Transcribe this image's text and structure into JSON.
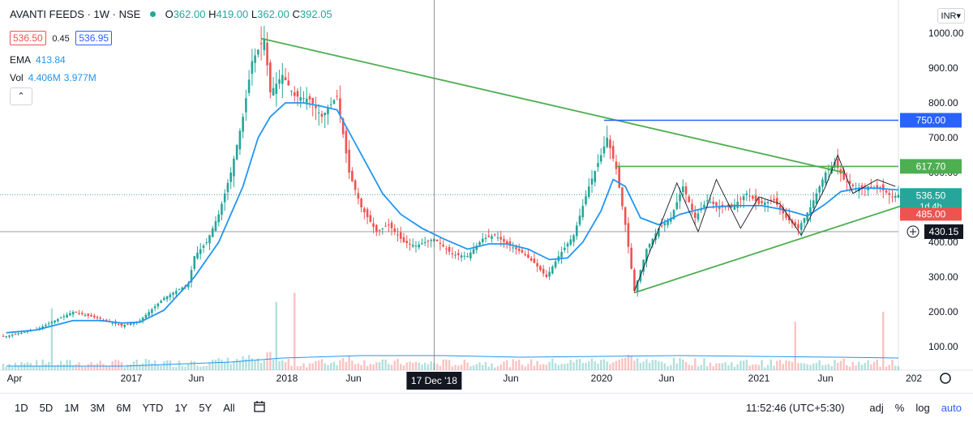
{
  "header": {
    "symbol": "AVANTI FEEDS · 1W · NSE",
    "ohlc": [
      {
        "key": "O",
        "value": "362.00"
      },
      {
        "key": "H",
        "value": "419.00"
      },
      {
        "key": "L",
        "value": "362.00"
      },
      {
        "key": "C",
        "value": "392.05"
      }
    ],
    "bid": "536.50",
    "spread": "0.45",
    "ask": "536.95",
    "ema_label": "EMA",
    "ema_value": "413.84",
    "vol_label": "Vol",
    "vol_value1": "4.406M",
    "vol_value2": "3.977M",
    "collapse_glyph": "⌃",
    "currency": "INR▾"
  },
  "colors": {
    "up": "#26a69a",
    "down": "#ef5350",
    "ema": "#2196f3",
    "trend": "#4caf50",
    "hline_blue": "#2962ff"
  },
  "chart_data": {
    "type": "candlestick",
    "timeframe": "1W",
    "y_axis_ticks": [
      100,
      200,
      300,
      400,
      500,
      600,
      700,
      800,
      900,
      1000
    ],
    "y_axis_tick_labels": [
      "100.00",
      "200.00",
      "300.00",
      "400.00",
      "500.00",
      "600.00",
      "700.00",
      "800.00",
      "900.00",
      "1000.00"
    ],
    "x_axis_labels": [
      "Apr",
      "2017",
      "Jun",
      "2018",
      "Jun",
      "Jun",
      "2020",
      "Jun",
      "2021",
      "Jun",
      "202"
    ],
    "cursor_date_label": "17 Dec '18",
    "x_range": [
      "2016-03-28",
      "2021-11-22"
    ],
    "ylim": [
      20,
      1060
    ],
    "price_path": [
      [
        "2016-04-04",
        130
      ],
      [
        "2016-06-13",
        150
      ],
      [
        "2016-09-05",
        200
      ],
      [
        "2016-11-07",
        180
      ],
      [
        "2016-12-26",
        160
      ],
      [
        "2017-02-06",
        175
      ],
      [
        "2017-04-03",
        240
      ],
      [
        "2017-05-29",
        280
      ],
      [
        "2017-06-12",
        360
      ],
      [
        "2017-07-10",
        400
      ],
      [
        "2017-08-07",
        480
      ],
      [
        "2017-09-04",
        600
      ],
      [
        "2017-10-02",
        760
      ],
      [
        "2017-10-23",
        920
      ],
      [
        "2017-11-20",
        985
      ],
      [
        "2017-12-04",
        830
      ],
      [
        "2018-01-01",
        880
      ],
      [
        "2018-01-29",
        820
      ],
      [
        "2018-03-05",
        810
      ],
      [
        "2018-04-02",
        760
      ],
      [
        "2018-05-07",
        820
      ],
      [
        "2018-06-04",
        600
      ],
      [
        "2018-07-02",
        500
      ],
      [
        "2018-08-06",
        430
      ],
      [
        "2018-09-03",
        450
      ],
      [
        "2018-10-08",
        400
      ],
      [
        "2018-11-05",
        390
      ],
      [
        "2018-12-17",
        410
      ],
      [
        "2019-01-28",
        365
      ],
      [
        "2019-03-04",
        360
      ],
      [
        "2019-04-08",
        410
      ],
      [
        "2019-05-06",
        420
      ],
      [
        "2019-06-03",
        395
      ],
      [
        "2019-07-08",
        370
      ],
      [
        "2019-08-05",
        340
      ],
      [
        "2019-09-02",
        300
      ],
      [
        "2019-09-30",
        360
      ],
      [
        "2019-11-04",
        420
      ],
      [
        "2019-12-09",
        560
      ],
      [
        "2020-01-06",
        650
      ],
      [
        "2020-01-20",
        700
      ],
      [
        "2020-02-10",
        610
      ],
      [
        "2020-03-02",
        450
      ],
      [
        "2020-03-23",
        260
      ],
      [
        "2020-04-20",
        380
      ],
      [
        "2020-05-18",
        440
      ],
      [
        "2020-06-15",
        470
      ],
      [
        "2020-07-13",
        560
      ],
      [
        "2020-08-10",
        470
      ],
      [
        "2020-09-07",
        520
      ],
      [
        "2020-10-05",
        500
      ],
      [
        "2020-11-02",
        500
      ],
      [
        "2020-12-07",
        540
      ],
      [
        "2021-01-04",
        510
      ],
      [
        "2021-02-08",
        520
      ],
      [
        "2021-03-08",
        470
      ],
      [
        "2021-04-05",
        440
      ],
      [
        "2021-05-03",
        500
      ],
      [
        "2021-06-07",
        600
      ],
      [
        "2021-06-28",
        630
      ],
      [
        "2021-07-19",
        580
      ],
      [
        "2021-08-16",
        555
      ],
      [
        "2021-09-13",
        560
      ],
      [
        "2021-10-11",
        555
      ],
      [
        "2021-11-08",
        530
      ],
      [
        "2021-11-22",
        536
      ]
    ],
    "ema_path": [
      [
        "2016-04-04",
        140
      ],
      [
        "2016-06-13",
        148
      ],
      [
        "2016-09-05",
        175
      ],
      [
        "2016-11-07",
        175
      ],
      [
        "2016-12-26",
        168
      ],
      [
        "2017-02-06",
        170
      ],
      [
        "2017-04-03",
        205
      ],
      [
        "2017-06-12",
        300
      ],
      [
        "2017-08-07",
        400
      ],
      [
        "2017-09-04",
        480
      ],
      [
        "2017-10-02",
        560
      ],
      [
        "2017-11-06",
        700
      ],
      [
        "2017-12-04",
        760
      ],
      [
        "2018-01-08",
        800
      ],
      [
        "2018-02-19",
        800
      ],
      [
        "2018-04-02",
        790
      ],
      [
        "2018-05-07",
        780
      ],
      [
        "2018-06-11",
        700
      ],
      [
        "2018-07-16",
        620
      ],
      [
        "2018-08-20",
        540
      ],
      [
        "2018-10-01",
        480
      ],
      [
        "2018-11-19",
        440
      ],
      [
        "2019-01-07",
        410
      ],
      [
        "2019-03-04",
        380
      ],
      [
        "2019-04-22",
        395
      ],
      [
        "2019-06-03",
        395
      ],
      [
        "2019-07-22",
        380
      ],
      [
        "2019-09-09",
        350
      ],
      [
        "2019-10-21",
        355
      ],
      [
        "2019-11-25",
        400
      ],
      [
        "2020-01-06",
        490
      ],
      [
        "2020-02-03",
        580
      ],
      [
        "2020-03-02",
        560
      ],
      [
        "2020-04-06",
        470
      ],
      [
        "2020-05-18",
        450
      ],
      [
        "2020-07-06",
        480
      ],
      [
        "2020-09-07",
        500
      ],
      [
        "2020-11-09",
        505
      ],
      [
        "2021-01-11",
        505
      ],
      [
        "2021-03-15",
        490
      ],
      [
        "2021-04-26",
        475
      ],
      [
        "2021-06-07",
        510
      ],
      [
        "2021-07-12",
        545
      ],
      [
        "2021-08-23",
        555
      ],
      [
        "2021-10-04",
        555
      ],
      [
        "2021-11-22",
        550
      ]
    ],
    "volume_path": [
      [
        "2016-04-04",
        5
      ],
      [
        "2017-01-02",
        5
      ],
      [
        "2017-09-04",
        10
      ],
      [
        "2018-01-01",
        15
      ],
      [
        "2018-07-02",
        18
      ],
      [
        "2019-01-07",
        18
      ],
      [
        "2019-07-01",
        16
      ],
      [
        "2020-01-06",
        17
      ],
      [
        "2020-07-06",
        18
      ],
      [
        "2021-01-04",
        17
      ],
      [
        "2021-07-05",
        16
      ],
      [
        "2021-11-22",
        15
      ]
    ],
    "drawings": {
      "trend_lines": [
        {
          "from": [
            "2017-11-13",
            985
          ],
          "to": [
            "2021-07-19",
            600
          ]
        },
        {
          "from": [
            "2020-03-23",
            255
          ],
          "to": [
            "2021-12-13",
            510
          ]
        }
      ],
      "horizontal_lines": [
        {
          "y": 750,
          "from": "2020-01-13",
          "label": "750.00",
          "color": "#2962ff"
        },
        {
          "y": 617.7,
          "from": "2020-02-10",
          "label": "617.70",
          "color": "#4caf50"
        }
      ],
      "zigzags": [
        [
          [
            "2020-03-23",
            260
          ],
          [
            "2020-06-29",
            570
          ],
          [
            "2020-08-17",
            430
          ],
          [
            "2020-09-28",
            580
          ],
          [
            "2020-11-23",
            440
          ],
          [
            "2021-01-04",
            530
          ],
          [
            "2021-02-22",
            510
          ],
          [
            "2021-04-12",
            420
          ],
          [
            "2021-06-07",
            560
          ],
          [
            "2021-07-05",
            650
          ],
          [
            "2021-08-09",
            540
          ],
          [
            "2021-10-04",
            580
          ],
          [
            "2021-11-15",
            560
          ]
        ]
      ]
    },
    "price_labels": [
      {
        "text": "536.50",
        "sub": "1d 4h",
        "y": 536.5,
        "color": "#26a69a"
      },
      {
        "text": "485.00",
        "y": 485,
        "color": "#ef5350"
      },
      {
        "text": "430.15",
        "y": 430.15,
        "color": "#131722"
      }
    ],
    "cursor_price": 430.15
  },
  "bottom_bar": {
    "timeframes": [
      "1D",
      "5D",
      "1M",
      "3M",
      "6M",
      "YTD",
      "1Y",
      "5Y",
      "All"
    ],
    "time": "11:52:46 (UTC+5:30)",
    "adj": "adj",
    "pct": "%",
    "log": "log",
    "auto": "auto"
  }
}
